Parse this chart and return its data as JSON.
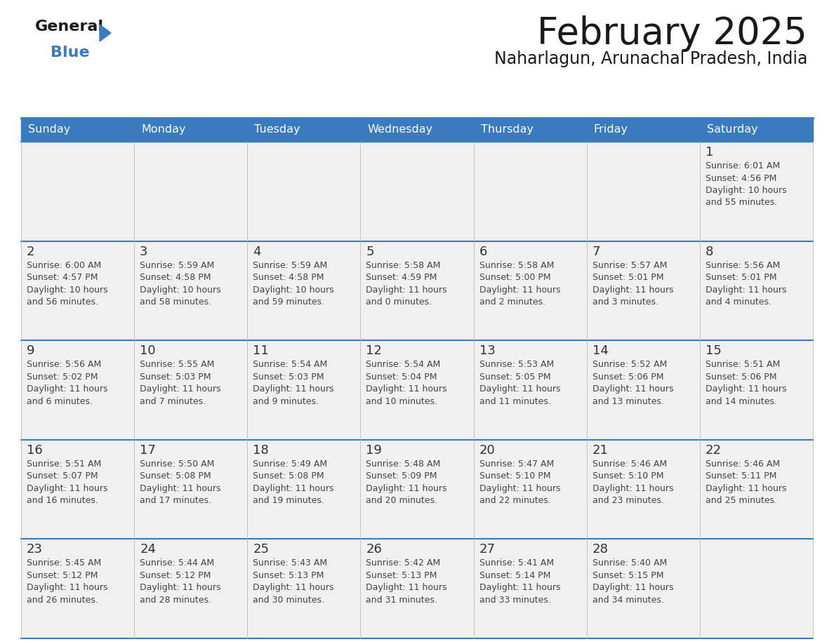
{
  "title": "February 2025",
  "subtitle": "Naharlagun, Arunachal Pradesh, India",
  "header_color": "#3a7bbf",
  "header_text_color": "#ffffff",
  "day_names": [
    "Sunday",
    "Monday",
    "Tuesday",
    "Wednesday",
    "Thursday",
    "Friday",
    "Saturday"
  ],
  "background_color": "#ffffff",
  "cell_bg_color": "#f0f0f0",
  "separator_color": "#3a7bbf",
  "text_color": "#333333",
  "days": [
    {
      "day": 1,
      "col": 6,
      "row": 0,
      "sunrise": "6:01 AM",
      "sunset": "4:56 PM",
      "daylight_l1": "10 hours",
      "daylight_l2": "and 55 minutes."
    },
    {
      "day": 2,
      "col": 0,
      "row": 1,
      "sunrise": "6:00 AM",
      "sunset": "4:57 PM",
      "daylight_l1": "10 hours",
      "daylight_l2": "and 56 minutes."
    },
    {
      "day": 3,
      "col": 1,
      "row": 1,
      "sunrise": "5:59 AM",
      "sunset": "4:58 PM",
      "daylight_l1": "10 hours",
      "daylight_l2": "and 58 minutes."
    },
    {
      "day": 4,
      "col": 2,
      "row": 1,
      "sunrise": "5:59 AM",
      "sunset": "4:58 PM",
      "daylight_l1": "10 hours",
      "daylight_l2": "and 59 minutes."
    },
    {
      "day": 5,
      "col": 3,
      "row": 1,
      "sunrise": "5:58 AM",
      "sunset": "4:59 PM",
      "daylight_l1": "11 hours",
      "daylight_l2": "and 0 minutes."
    },
    {
      "day": 6,
      "col": 4,
      "row": 1,
      "sunrise": "5:58 AM",
      "sunset": "5:00 PM",
      "daylight_l1": "11 hours",
      "daylight_l2": "and 2 minutes."
    },
    {
      "day": 7,
      "col": 5,
      "row": 1,
      "sunrise": "5:57 AM",
      "sunset": "5:01 PM",
      "daylight_l1": "11 hours",
      "daylight_l2": "and 3 minutes."
    },
    {
      "day": 8,
      "col": 6,
      "row": 1,
      "sunrise": "5:56 AM",
      "sunset": "5:01 PM",
      "daylight_l1": "11 hours",
      "daylight_l2": "and 4 minutes."
    },
    {
      "day": 9,
      "col": 0,
      "row": 2,
      "sunrise": "5:56 AM",
      "sunset": "5:02 PM",
      "daylight_l1": "11 hours",
      "daylight_l2": "and 6 minutes."
    },
    {
      "day": 10,
      "col": 1,
      "row": 2,
      "sunrise": "5:55 AM",
      "sunset": "5:03 PM",
      "daylight_l1": "11 hours",
      "daylight_l2": "and 7 minutes."
    },
    {
      "day": 11,
      "col": 2,
      "row": 2,
      "sunrise": "5:54 AM",
      "sunset": "5:03 PM",
      "daylight_l1": "11 hours",
      "daylight_l2": "and 9 minutes."
    },
    {
      "day": 12,
      "col": 3,
      "row": 2,
      "sunrise": "5:54 AM",
      "sunset": "5:04 PM",
      "daylight_l1": "11 hours",
      "daylight_l2": "and 10 minutes."
    },
    {
      "day": 13,
      "col": 4,
      "row": 2,
      "sunrise": "5:53 AM",
      "sunset": "5:05 PM",
      "daylight_l1": "11 hours",
      "daylight_l2": "and 11 minutes."
    },
    {
      "day": 14,
      "col": 5,
      "row": 2,
      "sunrise": "5:52 AM",
      "sunset": "5:06 PM",
      "daylight_l1": "11 hours",
      "daylight_l2": "and 13 minutes."
    },
    {
      "day": 15,
      "col": 6,
      "row": 2,
      "sunrise": "5:51 AM",
      "sunset": "5:06 PM",
      "daylight_l1": "11 hours",
      "daylight_l2": "and 14 minutes."
    },
    {
      "day": 16,
      "col": 0,
      "row": 3,
      "sunrise": "5:51 AM",
      "sunset": "5:07 PM",
      "daylight_l1": "11 hours",
      "daylight_l2": "and 16 minutes."
    },
    {
      "day": 17,
      "col": 1,
      "row": 3,
      "sunrise": "5:50 AM",
      "sunset": "5:08 PM",
      "daylight_l1": "11 hours",
      "daylight_l2": "and 17 minutes."
    },
    {
      "day": 18,
      "col": 2,
      "row": 3,
      "sunrise": "5:49 AM",
      "sunset": "5:08 PM",
      "daylight_l1": "11 hours",
      "daylight_l2": "and 19 minutes."
    },
    {
      "day": 19,
      "col": 3,
      "row": 3,
      "sunrise": "5:48 AM",
      "sunset": "5:09 PM",
      "daylight_l1": "11 hours",
      "daylight_l2": "and 20 minutes."
    },
    {
      "day": 20,
      "col": 4,
      "row": 3,
      "sunrise": "5:47 AM",
      "sunset": "5:10 PM",
      "daylight_l1": "11 hours",
      "daylight_l2": "and 22 minutes."
    },
    {
      "day": 21,
      "col": 5,
      "row": 3,
      "sunrise": "5:46 AM",
      "sunset": "5:10 PM",
      "daylight_l1": "11 hours",
      "daylight_l2": "and 23 minutes."
    },
    {
      "day": 22,
      "col": 6,
      "row": 3,
      "sunrise": "5:46 AM",
      "sunset": "5:11 PM",
      "daylight_l1": "11 hours",
      "daylight_l2": "and 25 minutes."
    },
    {
      "day": 23,
      "col": 0,
      "row": 4,
      "sunrise": "5:45 AM",
      "sunset": "5:12 PM",
      "daylight_l1": "11 hours",
      "daylight_l2": "and 26 minutes."
    },
    {
      "day": 24,
      "col": 1,
      "row": 4,
      "sunrise": "5:44 AM",
      "sunset": "5:12 PM",
      "daylight_l1": "11 hours",
      "daylight_l2": "and 28 minutes."
    },
    {
      "day": 25,
      "col": 2,
      "row": 4,
      "sunrise": "5:43 AM",
      "sunset": "5:13 PM",
      "daylight_l1": "11 hours",
      "daylight_l2": "and 30 minutes."
    },
    {
      "day": 26,
      "col": 3,
      "row": 4,
      "sunrise": "5:42 AM",
      "sunset": "5:13 PM",
      "daylight_l1": "11 hours",
      "daylight_l2": "and 31 minutes."
    },
    {
      "day": 27,
      "col": 4,
      "row": 4,
      "sunrise": "5:41 AM",
      "sunset": "5:14 PM",
      "daylight_l1": "11 hours",
      "daylight_l2": "and 33 minutes."
    },
    {
      "day": 28,
      "col": 5,
      "row": 4,
      "sunrise": "5:40 AM",
      "sunset": "5:15 PM",
      "daylight_l1": "11 hours",
      "daylight_l2": "and 34 minutes."
    }
  ],
  "num_rows": 5
}
